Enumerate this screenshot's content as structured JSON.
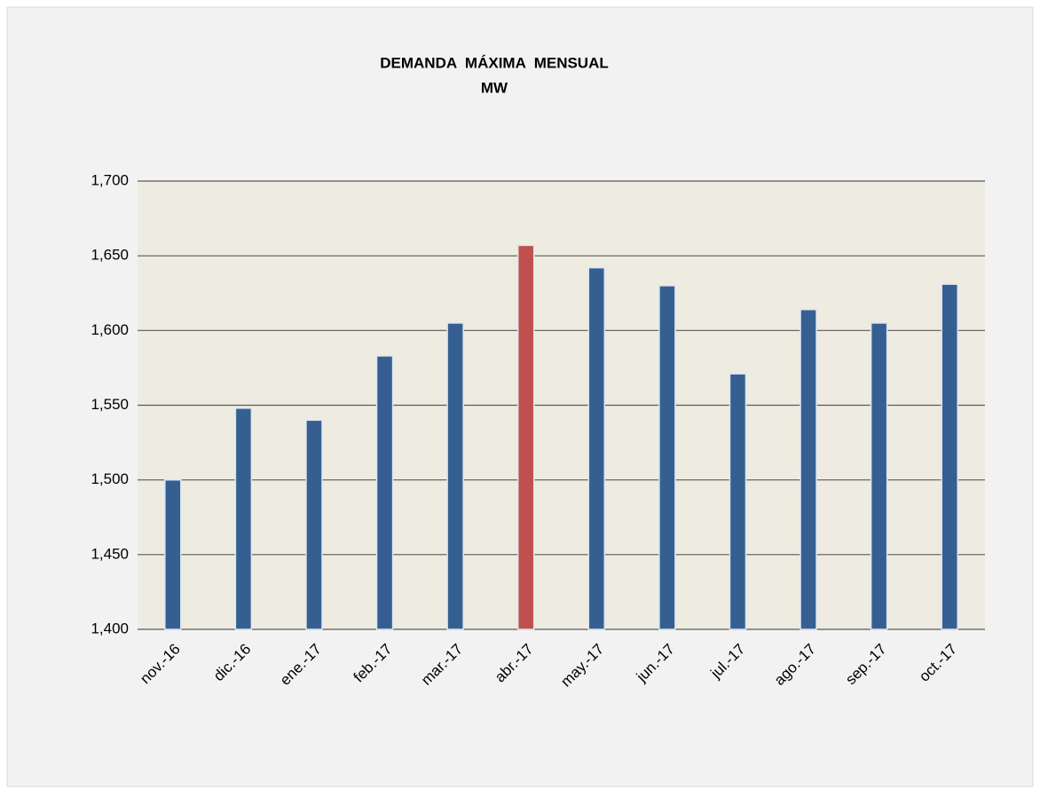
{
  "chart_data": {
    "type": "bar",
    "title": "DEMANDA  MÁXIMA  MENSUAL",
    "subtitle": "MW",
    "categories": [
      "nov.-16",
      "dic.-16",
      "ene.-17",
      "feb.-17",
      "mar.-17",
      "abr.-17",
      "may.-17",
      "jun.-17",
      "jul.-17",
      "ago.-17",
      "sep.-17",
      "oct.-17"
    ],
    "values": [
      1500,
      1548,
      1540,
      1583,
      1605,
      1657,
      1642,
      1630,
      1571,
      1614,
      1605,
      1631
    ],
    "colors": [
      "#365f91",
      "#365f91",
      "#365f91",
      "#365f91",
      "#365f91",
      "#c0504d",
      "#365f91",
      "#365f91",
      "#365f91",
      "#365f91",
      "#365f91",
      "#365f91"
    ],
    "ylim": [
      1400,
      1700
    ],
    "yticks": [
      {
        "value": 1400,
        "label": "1,400"
      },
      {
        "value": 1450,
        "label": "1,450"
      },
      {
        "value": 1500,
        "label": "1,500"
      },
      {
        "value": 1550,
        "label": "1,550"
      },
      {
        "value": 1600,
        "label": "1,600"
      },
      {
        "value": 1650,
        "label": "1,650"
      },
      {
        "value": 1700,
        "label": "1,700"
      }
    ],
    "grid": true
  }
}
